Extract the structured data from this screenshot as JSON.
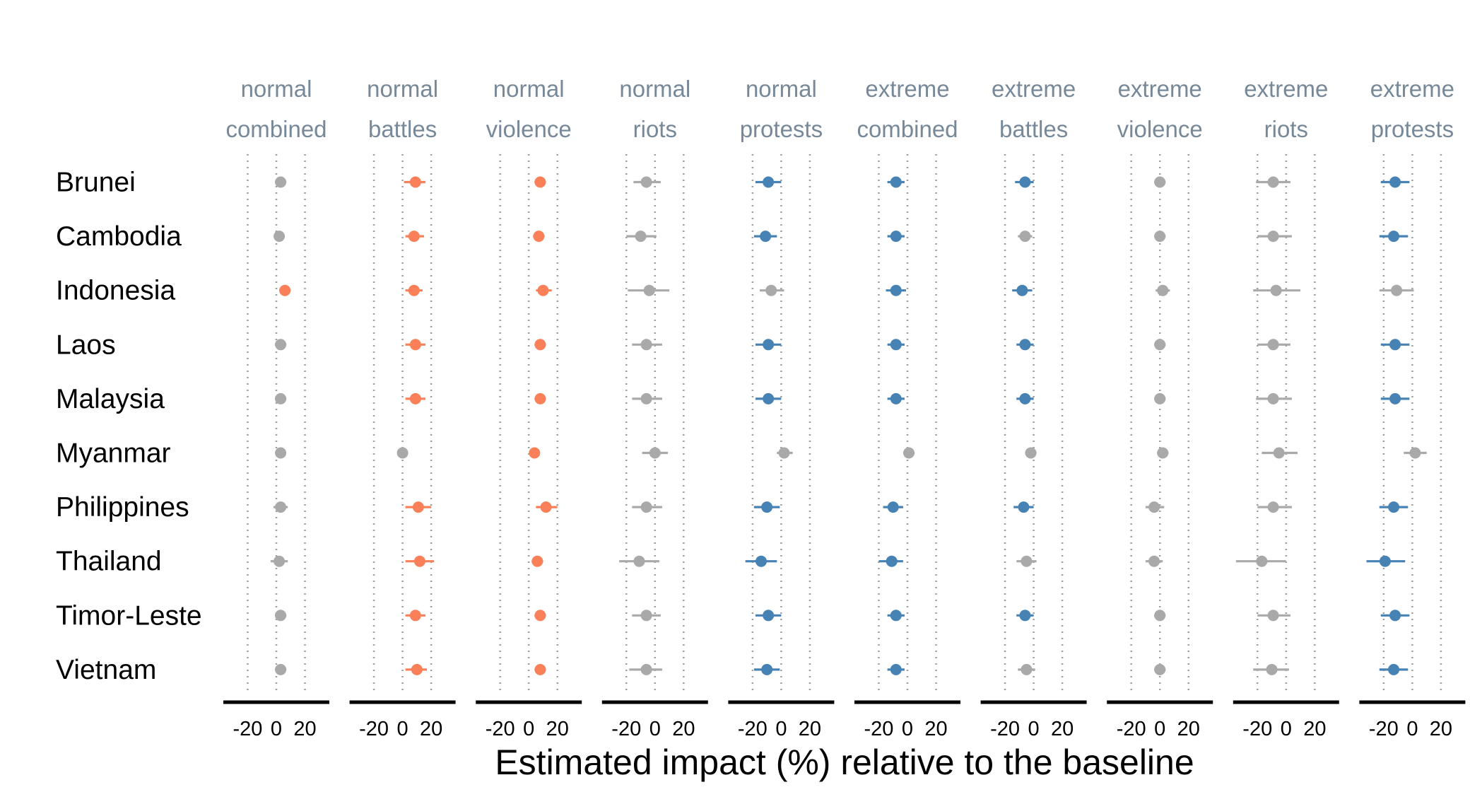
{
  "chart_data": {
    "type": "scatter",
    "subtype": "dot-and-whisker",
    "xlabel": "Estimated impact (%) relative to the baseline",
    "ylabel": "",
    "xlim": [
      -37,
      37
    ],
    "xticks": [
      -20,
      0,
      20
    ],
    "grid": "vertical dotted at -20, 0, 20",
    "countries": [
      "Brunei",
      "Cambodia",
      "Indonesia",
      "Laos",
      "Malaysia",
      "Myanmar",
      "Philippines",
      "Thailand",
      "Timor-Leste",
      "Vietnam"
    ],
    "colors": {
      "positive": "#fa8059",
      "negative": "#4682b4",
      "neutral": "#a9a9a9"
    },
    "panels": [
      {
        "line1": "normal",
        "line2": "combined",
        "points": [
          {
            "est": 3,
            "lo": -1,
            "hi": 7,
            "color": "neutral"
          },
          {
            "est": 2,
            "lo": -1,
            "hi": 5,
            "color": "neutral"
          },
          {
            "est": 6,
            "lo": 2,
            "hi": 10,
            "color": "positive"
          },
          {
            "est": 3,
            "lo": -1,
            "hi": 7,
            "color": "neutral"
          },
          {
            "est": 3,
            "lo": -1,
            "hi": 7,
            "color": "neutral"
          },
          {
            "est": 3,
            "lo": 0,
            "hi": 6,
            "color": "neutral"
          },
          {
            "est": 3,
            "lo": -2,
            "hi": 8,
            "color": "neutral"
          },
          {
            "est": 2,
            "lo": -4,
            "hi": 8,
            "color": "neutral"
          },
          {
            "est": 3,
            "lo": -1,
            "hi": 7,
            "color": "neutral"
          },
          {
            "est": 3,
            "lo": -1,
            "hi": 7,
            "color": "neutral"
          }
        ]
      },
      {
        "line1": "normal",
        "line2": "battles",
        "points": [
          {
            "est": 9,
            "lo": 1,
            "hi": 16,
            "color": "positive"
          },
          {
            "est": 8,
            "lo": 2,
            "hi": 15,
            "color": "positive"
          },
          {
            "est": 8,
            "lo": 2,
            "hi": 14,
            "color": "positive"
          },
          {
            "est": 9,
            "lo": 2,
            "hi": 16,
            "color": "positive"
          },
          {
            "est": 9,
            "lo": 2,
            "hi": 16,
            "color": "positive"
          },
          {
            "est": 0,
            "lo": -3,
            "hi": 3,
            "color": "neutral"
          },
          {
            "est": 11,
            "lo": 2,
            "hi": 20,
            "color": "positive"
          },
          {
            "est": 12,
            "lo": 2,
            "hi": 22,
            "color": "positive"
          },
          {
            "est": 9,
            "lo": 2,
            "hi": 16,
            "color": "positive"
          },
          {
            "est": 10,
            "lo": 2,
            "hi": 17,
            "color": "positive"
          }
        ]
      },
      {
        "line1": "normal",
        "line2": "violence",
        "points": [
          {
            "est": 8,
            "lo": 4,
            "hi": 12,
            "color": "positive"
          },
          {
            "est": 7,
            "lo": 3,
            "hi": 11,
            "color": "positive"
          },
          {
            "est": 10,
            "lo": 5,
            "hi": 16,
            "color": "positive"
          },
          {
            "est": 8,
            "lo": 4,
            "hi": 12,
            "color": "positive"
          },
          {
            "est": 8,
            "lo": 4,
            "hi": 12,
            "color": "positive"
          },
          {
            "est": 4,
            "lo": 1,
            "hi": 7,
            "color": "positive"
          },
          {
            "est": 12,
            "lo": 5,
            "hi": 20,
            "color": "positive"
          },
          {
            "est": 6,
            "lo": 2,
            "hi": 10,
            "color": "positive"
          },
          {
            "est": 8,
            "lo": 4,
            "hi": 12,
            "color": "positive"
          },
          {
            "est": 8,
            "lo": 4,
            "hi": 12,
            "color": "positive"
          }
        ]
      },
      {
        "line1": "normal",
        "line2": "riots",
        "points": [
          {
            "est": -6,
            "lo": -15,
            "hi": 4,
            "color": "neutral"
          },
          {
            "est": -10,
            "lo": -20,
            "hi": 1,
            "color": "neutral"
          },
          {
            "est": -4,
            "lo": -19,
            "hi": 10,
            "color": "neutral"
          },
          {
            "est": -6,
            "lo": -16,
            "hi": 5,
            "color": "neutral"
          },
          {
            "est": -6,
            "lo": -16,
            "hi": 5,
            "color": "neutral"
          },
          {
            "est": 0,
            "lo": -9,
            "hi": 9,
            "color": "neutral"
          },
          {
            "est": -6,
            "lo": -16,
            "hi": 5,
            "color": "neutral"
          },
          {
            "est": -11,
            "lo": -25,
            "hi": 3,
            "color": "neutral"
          },
          {
            "est": -6,
            "lo": -16,
            "hi": 4,
            "color": "neutral"
          },
          {
            "est": -6,
            "lo": -18,
            "hi": 5,
            "color": "neutral"
          }
        ]
      },
      {
        "line1": "normal",
        "line2": "protests",
        "points": [
          {
            "est": -9,
            "lo": -18,
            "hi": 0,
            "color": "negative"
          },
          {
            "est": -11,
            "lo": -19,
            "hi": -3,
            "color": "negative"
          },
          {
            "est": -7,
            "lo": -15,
            "hi": 2,
            "color": "neutral"
          },
          {
            "est": -9,
            "lo": -18,
            "hi": 0,
            "color": "negative"
          },
          {
            "est": -9,
            "lo": -18,
            "hi": 0,
            "color": "negative"
          },
          {
            "est": 2,
            "lo": -3,
            "hi": 8,
            "color": "neutral"
          },
          {
            "est": -10,
            "lo": -19,
            "hi": -1,
            "color": "negative"
          },
          {
            "est": -14,
            "lo": -25,
            "hi": -3,
            "color": "negative"
          },
          {
            "est": -9,
            "lo": -18,
            "hi": 0,
            "color": "negative"
          },
          {
            "est": -10,
            "lo": -19,
            "hi": -1,
            "color": "negative"
          }
        ]
      },
      {
        "line1": "extreme",
        "line2": "combined",
        "points": [
          {
            "est": -8,
            "lo": -14,
            "hi": -2,
            "color": "negative"
          },
          {
            "est": -8,
            "lo": -14,
            "hi": -2,
            "color": "negative"
          },
          {
            "est": -8,
            "lo": -15,
            "hi": -1,
            "color": "negative"
          },
          {
            "est": -8,
            "lo": -14,
            "hi": -2,
            "color": "negative"
          },
          {
            "est": -8,
            "lo": -14,
            "hi": -2,
            "color": "negative"
          },
          {
            "est": 1,
            "lo": -3,
            "hi": 5,
            "color": "neutral"
          },
          {
            "est": -10,
            "lo": -17,
            "hi": -3,
            "color": "negative"
          },
          {
            "est": -11,
            "lo": -20,
            "hi": -3,
            "color": "negative"
          },
          {
            "est": -8,
            "lo": -14,
            "hi": -2,
            "color": "negative"
          },
          {
            "est": -8,
            "lo": -14,
            "hi": -2,
            "color": "negative"
          }
        ]
      },
      {
        "line1": "extreme",
        "line2": "battles",
        "points": [
          {
            "est": -6,
            "lo": -13,
            "hi": 0,
            "color": "negative"
          },
          {
            "est": -6,
            "lo": -11,
            "hi": -1,
            "color": "neutral"
          },
          {
            "est": -8,
            "lo": -15,
            "hi": -1,
            "color": "negative"
          },
          {
            "est": -6,
            "lo": -12,
            "hi": 0,
            "color": "negative"
          },
          {
            "est": -6,
            "lo": -12,
            "hi": 0,
            "color": "negative"
          },
          {
            "est": -2,
            "lo": -6,
            "hi": 2,
            "color": "neutral"
          },
          {
            "est": -7,
            "lo": -14,
            "hi": 0,
            "color": "negative"
          },
          {
            "est": -5,
            "lo": -12,
            "hi": 2,
            "color": "neutral"
          },
          {
            "est": -6,
            "lo": -12,
            "hi": 0,
            "color": "negative"
          },
          {
            "est": -5,
            "lo": -11,
            "hi": 1,
            "color": "neutral"
          }
        ]
      },
      {
        "line1": "extreme",
        "line2": "violence",
        "points": [
          {
            "est": 0,
            "lo": -4,
            "hi": 4,
            "color": "neutral"
          },
          {
            "est": 0,
            "lo": -4,
            "hi": 4,
            "color": "neutral"
          },
          {
            "est": 2,
            "lo": -3,
            "hi": 7,
            "color": "neutral"
          },
          {
            "est": 0,
            "lo": -4,
            "hi": 4,
            "color": "neutral"
          },
          {
            "est": 0,
            "lo": -4,
            "hi": 4,
            "color": "neutral"
          },
          {
            "est": 2,
            "lo": -2,
            "hi": 6,
            "color": "neutral"
          },
          {
            "est": -4,
            "lo": -10,
            "hi": 3,
            "color": "neutral"
          },
          {
            "est": -4,
            "lo": -10,
            "hi": 2,
            "color": "neutral"
          },
          {
            "est": 0,
            "lo": -4,
            "hi": 4,
            "color": "neutral"
          },
          {
            "est": 0,
            "lo": -4,
            "hi": 4,
            "color": "neutral"
          }
        ]
      },
      {
        "line1": "extreme",
        "line2": "riots",
        "points": [
          {
            "est": -9,
            "lo": -21,
            "hi": 3,
            "color": "neutral"
          },
          {
            "est": -9,
            "lo": -20,
            "hi": 4,
            "color": "neutral"
          },
          {
            "est": -7,
            "lo": -23,
            "hi": 10,
            "color": "neutral"
          },
          {
            "est": -9,
            "lo": -20,
            "hi": 3,
            "color": "neutral"
          },
          {
            "est": -9,
            "lo": -21,
            "hi": 4,
            "color": "neutral"
          },
          {
            "est": -5,
            "lo": -17,
            "hi": 8,
            "color": "neutral"
          },
          {
            "est": -9,
            "lo": -20,
            "hi": 4,
            "color": "neutral"
          },
          {
            "est": -17,
            "lo": -35,
            "hi": 0,
            "color": "neutral"
          },
          {
            "est": -9,
            "lo": -20,
            "hi": 3,
            "color": "neutral"
          },
          {
            "est": -10,
            "lo": -23,
            "hi": 2,
            "color": "neutral"
          }
        ]
      },
      {
        "line1": "extreme",
        "line2": "protests",
        "points": [
          {
            "est": -12,
            "lo": -22,
            "hi": -2,
            "color": "negative"
          },
          {
            "est": -13,
            "lo": -23,
            "hi": -3,
            "color": "negative"
          },
          {
            "est": -11,
            "lo": -23,
            "hi": 1,
            "color": "neutral"
          },
          {
            "est": -12,
            "lo": -22,
            "hi": -2,
            "color": "negative"
          },
          {
            "est": -12,
            "lo": -22,
            "hi": -2,
            "color": "negative"
          },
          {
            "est": 2,
            "lo": -6,
            "hi": 10,
            "color": "neutral"
          },
          {
            "est": -13,
            "lo": -23,
            "hi": -3,
            "color": "negative"
          },
          {
            "est": -19,
            "lo": -32,
            "hi": -5,
            "color": "negative"
          },
          {
            "est": -12,
            "lo": -22,
            "hi": -2,
            "color": "negative"
          },
          {
            "est": -13,
            "lo": -23,
            "hi": -3,
            "color": "negative"
          }
        ]
      }
    ]
  }
}
